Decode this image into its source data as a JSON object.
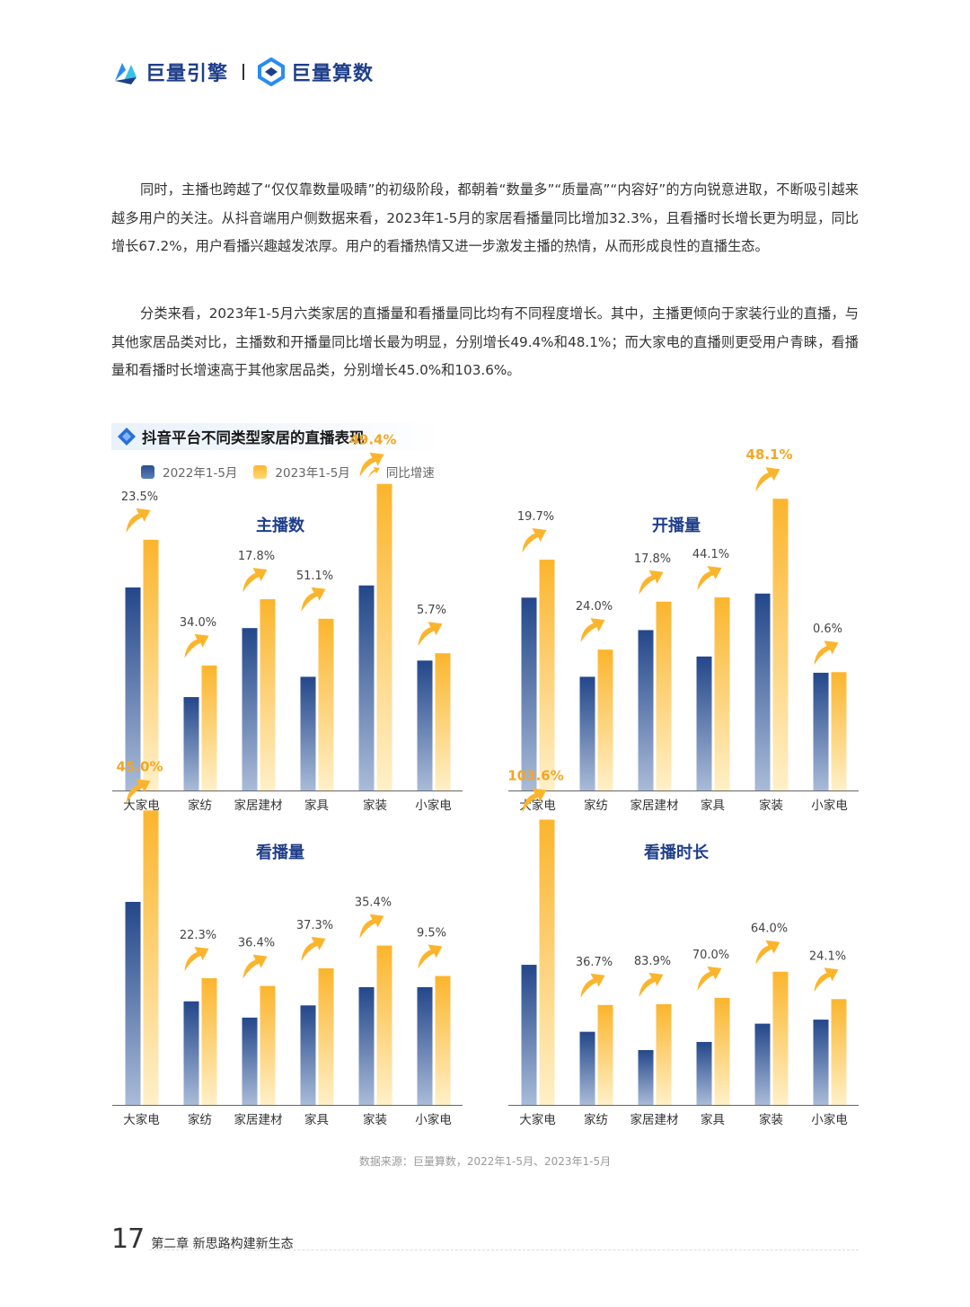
{
  "header": {
    "brand1": "巨量引擎",
    "brand2": "巨量算数"
  },
  "paragraphs": [
    "同时，主播也跨越了“仅仅靠数量吸睛”的初级阶段，都朝着“数量多”“质量高”“内容好”的方向锐意进取，不断吸引越来越多用户的关注。从抖音端用户侧数据来看，2023年1-5月的家居看播量同比增加32.3%，且看播时长增长更为明显，同比增长67.2%，用户看播兴趣越发浓厚。用户的看播热情又进一步激发主播的热情，从而形成良性的直播生态。",
    "分类来看，2023年1-5月六类家居的直播量和看播量同比均有不同程度增长。其中，主播更倾向于家装行业的直播，与其他家居品类对比，主播数和开播量同比增长最为明显，分别增长49.4%和48.1%；而大家电的直播则更受用户青睐，看播量和看播时长增速高于其他家居品类，分别增长45.0%和103.6%。"
  ],
  "section_title": "抖音平台不同类型家居的直播表现",
  "legend": {
    "series_a": "2022年1-5月",
    "series_b": "2023年1-5月",
    "growth": "同比增速"
  },
  "colors": {
    "series_a": "#2a4d8f",
    "series_b": "#fbb52d",
    "highlight": "#f5a623",
    "arrow": "#fbb52d"
  },
  "chart_data": [
    {
      "type": "bar",
      "title": "主播数",
      "categories": [
        "大家电",
        "家纺",
        "家居建材",
        "家具",
        "家装",
        "小家电"
      ],
      "series": [
        {
          "name": "2022年1-5月",
          "values": [
            100,
            46,
            80,
            56,
            101,
            64
          ]
        },
        {
          "name": "2023年1-5月",
          "values": [
            123.5,
            61.6,
            94.2,
            84.6,
            151,
            67.6
          ]
        }
      ],
      "growth_labels": [
        "23.5%",
        "34.0%",
        "17.8%",
        "51.1%",
        "49.4%",
        "5.7%"
      ],
      "highlight_index": 4,
      "ylim": [
        0,
        160
      ]
    },
    {
      "type": "bar",
      "title": "开播量",
      "categories": [
        "大家电",
        "家纺",
        "家居建材",
        "家具",
        "家装",
        "小家电"
      ],
      "series": [
        {
          "name": "2022年1-5月",
          "values": [
            95,
            56,
            79,
            66,
            97,
            58
          ]
        },
        {
          "name": "2023年1-5月",
          "values": [
            113.7,
            69.4,
            93,
            95.1,
            143.7,
            58.3
          ]
        }
      ],
      "growth_labels": [
        "19.7%",
        "24.0%",
        "17.8%",
        "44.1%",
        "48.1%",
        "0.6%"
      ],
      "highlight_index": 4,
      "ylim": [
        0,
        160
      ]
    },
    {
      "type": "bar",
      "title": "看播量",
      "categories": [
        "大家电",
        "家纺",
        "家居建材",
        "家具",
        "家装",
        "小家电"
      ],
      "series": [
        {
          "name": "2022年1-5月",
          "values": [
            100,
            51,
            43,
            49,
            58,
            58
          ]
        },
        {
          "name": "2023年1-5月",
          "values": [
            145,
            62.4,
            58.6,
            67.3,
            78.5,
            63.5
          ]
        }
      ],
      "growth_labels": [
        "45.0%",
        "22.3%",
        "36.4%",
        "37.3%",
        "35.4%",
        "9.5%"
      ],
      "highlight_index": 0,
      "ylim": [
        0,
        160
      ]
    },
    {
      "type": "bar",
      "title": "看播时长",
      "categories": [
        "大家电",
        "家纺",
        "家居建材",
        "家具",
        "家装",
        "小家电"
      ],
      "series": [
        {
          "name": "2022年1-5月",
          "values": [
            69,
            36,
            27,
            31,
            40,
            42
          ]
        },
        {
          "name": "2023年1-5月",
          "values": [
            140.5,
            49.2,
            49.6,
            52.7,
            65.6,
            52.1
          ]
        }
      ],
      "growth_labels": [
        "103.6%",
        "36.7%",
        "83.9%",
        "70.0%",
        "64.0%",
        "24.1%"
      ],
      "highlight_index": 0,
      "ylim": [
        0,
        160
      ]
    }
  ],
  "source": "数据来源：巨量算数，2022年1-5月、2023年1-5月",
  "footer": {
    "page_number": "17",
    "chapter": "第二章  新思路构建新生态"
  }
}
